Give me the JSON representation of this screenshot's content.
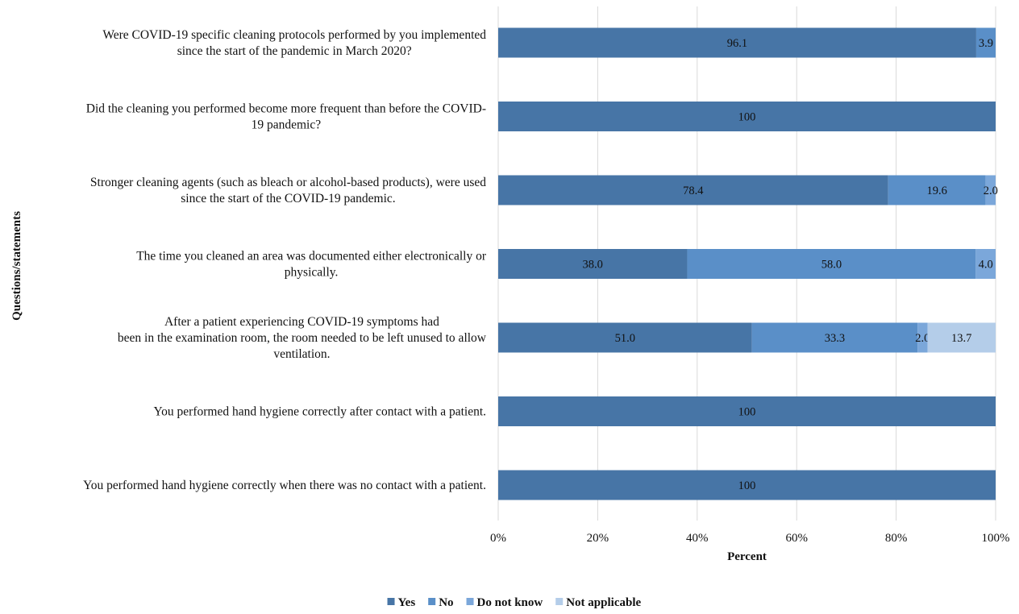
{
  "chart_data": {
    "type": "bar",
    "orientation": "horizontal",
    "stacked": "percent",
    "categories": [
      [
        "Were COVID-19 specific cleaning protocols performed by you implemented",
        "since the start of the pandemic in March 2020?"
      ],
      [
        "Did the cleaning you performed become more frequent than before the COVID-",
        "19 pandemic?"
      ],
      [
        "Stronger cleaning agents (such as bleach or alcohol-based products), were used",
        "since the start of the COVID-19 pandemic."
      ],
      [
        "The time you cleaned an area was documented either electronically or",
        "physically."
      ],
      [
        "After a patient experiencing COVID-19 symptoms had",
        "been in the examination room, the room needed to be left unused to allow",
        "ventilation."
      ],
      [
        "You performed hand hygiene correctly after contact with a patient."
      ],
      [
        "You performed hand hygiene correctly when there was no contact with a patient."
      ]
    ],
    "series": [
      {
        "name": "Yes",
        "color": "#4775a6",
        "values": [
          96.1,
          100,
          78.4,
          38.0,
          51.0,
          100,
          100
        ]
      },
      {
        "name": "No",
        "color": "#5a8fc8",
        "values": [
          3.9,
          0,
          19.6,
          58.0,
          33.3,
          0,
          0
        ]
      },
      {
        "name": "Do not know",
        "color": "#7ba7da",
        "values": [
          0,
          0,
          2.0,
          4.0,
          2.0,
          0,
          0
        ]
      },
      {
        "name": "Not applicable",
        "color": "#b4cde9",
        "values": [
          0,
          0,
          0,
          0,
          13.7,
          0,
          0
        ]
      }
    ],
    "data_labels": [
      [
        "96.1",
        "3.9",
        "",
        ""
      ],
      [
        "100",
        "",
        "",
        ""
      ],
      [
        "78.4",
        "19.6",
        "2.0",
        ""
      ],
      [
        "38.0",
        "58.0",
        "4.0",
        ""
      ],
      [
        "51.0",
        "33.3",
        "2.0",
        "13.7"
      ],
      [
        "100",
        "",
        "",
        ""
      ],
      [
        "100",
        "",
        "",
        ""
      ]
    ],
    "xlim": [
      0,
      100
    ],
    "xticks": [
      "0%",
      "20%",
      "40%",
      "60%",
      "80%",
      "100%"
    ],
    "xlabel": "Percent",
    "ylabel": "Questions/statements",
    "grid": "vertical",
    "legend_position": "bottom"
  }
}
